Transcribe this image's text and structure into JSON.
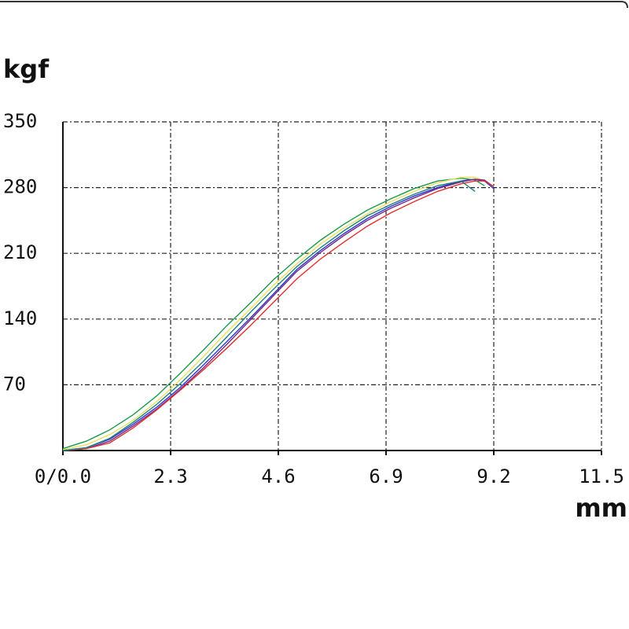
{
  "chart_data": {
    "type": "line",
    "x_label": "mm",
    "y_label": "kgf",
    "x": [
      0,
      0.5,
      1,
      1.5,
      2,
      2.5,
      3,
      3.5,
      4,
      4.5,
      5,
      5.5,
      6,
      6.5,
      7,
      7.5,
      8,
      8.5,
      8.8,
      9,
      9.2
    ],
    "series": [
      {
        "color": "#1a9a4a",
        "values": [
          2,
          10,
          22,
          38,
          58,
          82,
          107,
          133,
          157,
          182,
          204,
          224,
          241,
          256,
          268,
          279,
          287,
          290,
          288,
          282,
          null
        ]
      },
      {
        "color": "#e8e060",
        "values": [
          1,
          6,
          17,
          32,
          52,
          75,
          100,
          126,
          151,
          176,
          199,
          220,
          237,
          252,
          265,
          276,
          285,
          291,
          291,
          287,
          null
        ]
      },
      {
        "color": "#2a3ad0",
        "values": [
          0,
          3,
          12,
          28,
          46,
          67,
          91,
          116,
          141,
          167,
          193,
          213,
          231,
          247,
          260,
          271,
          280,
          287,
          289,
          287,
          279
        ]
      },
      {
        "color": "#7a2a80",
        "values": [
          0,
          2,
          10,
          26,
          44,
          65,
          88,
          113,
          139,
          165,
          191,
          211,
          229,
          245,
          258,
          269,
          279,
          286,
          289,
          288,
          281
        ]
      },
      {
        "color": "#e03030",
        "values": [
          0,
          2,
          8,
          24,
          43,
          64,
          86,
          109,
          133,
          158,
          183,
          204,
          222,
          239,
          253,
          265,
          276,
          284,
          287,
          287,
          281
        ]
      },
      {
        "color": "#208080",
        "values": [
          0,
          3,
          13,
          30,
          49,
          71,
          95,
          121,
          147,
          172,
          196,
          216,
          234,
          250,
          262,
          273,
          282,
          287,
          276,
          null,
          null
        ]
      }
    ],
    "xlim": [
      0,
      11.5
    ],
    "xticks": [
      {
        "value": 0,
        "label": "0/0.0"
      },
      2.3,
      4.6,
      6.9,
      9.2,
      11.5
    ],
    "ylim": [
      0,
      350
    ],
    "yticks": [
      70,
      140,
      210,
      280,
      350
    ],
    "grid": true
  }
}
